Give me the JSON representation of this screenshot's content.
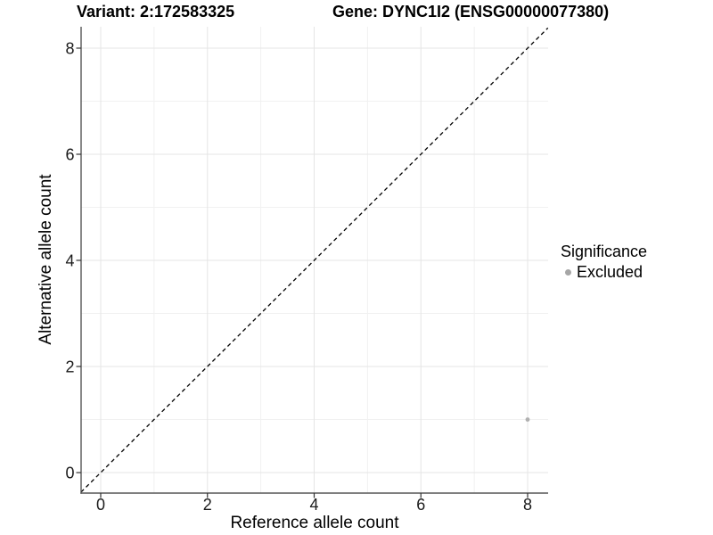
{
  "header": {
    "left_title": "Variant: 2:172583325",
    "right_title": "Gene: DYNC1I2 (ENSG00000077380)"
  },
  "axes": {
    "x_label": "Reference allele count",
    "y_label": "Alternative allele count"
  },
  "legend": {
    "title": "Significance",
    "items": [
      {
        "label": "Excluded",
        "color": "#a6a6a6",
        "marker": "dot"
      }
    ]
  },
  "chart_data": {
    "type": "scatter",
    "title": "",
    "xlabel": "Reference allele count",
    "ylabel": "Alternative allele count",
    "xlim": [
      -0.37,
      8.38
    ],
    "ylim": [
      -0.39,
      8.4
    ],
    "x_ticks": [
      0,
      2,
      4,
      6,
      8
    ],
    "y_ticks": [
      0,
      2,
      4,
      6,
      8
    ],
    "x_minor_ticks": [
      1,
      3,
      5,
      7
    ],
    "y_minor_ticks": [
      1,
      3,
      5,
      7
    ],
    "grid": "major-and-minor",
    "legend_position": "right",
    "series": [
      {
        "name": "Excluded",
        "color": "#a6a6a6",
        "points": [
          [
            8,
            1
          ]
        ]
      }
    ],
    "reference_line": {
      "kind": "identity",
      "slope": 1,
      "intercept": 0,
      "style": "dashed",
      "color": "#000000"
    }
  },
  "colors": {
    "grid_major": "#e5e5e5",
    "grid_minor": "#f1f1f1",
    "axis_line": "#555555",
    "tick_mark": "#333333",
    "tick_text": "#1a1a1a",
    "point": "#b0b0b0",
    "background": "#ffffff"
  }
}
